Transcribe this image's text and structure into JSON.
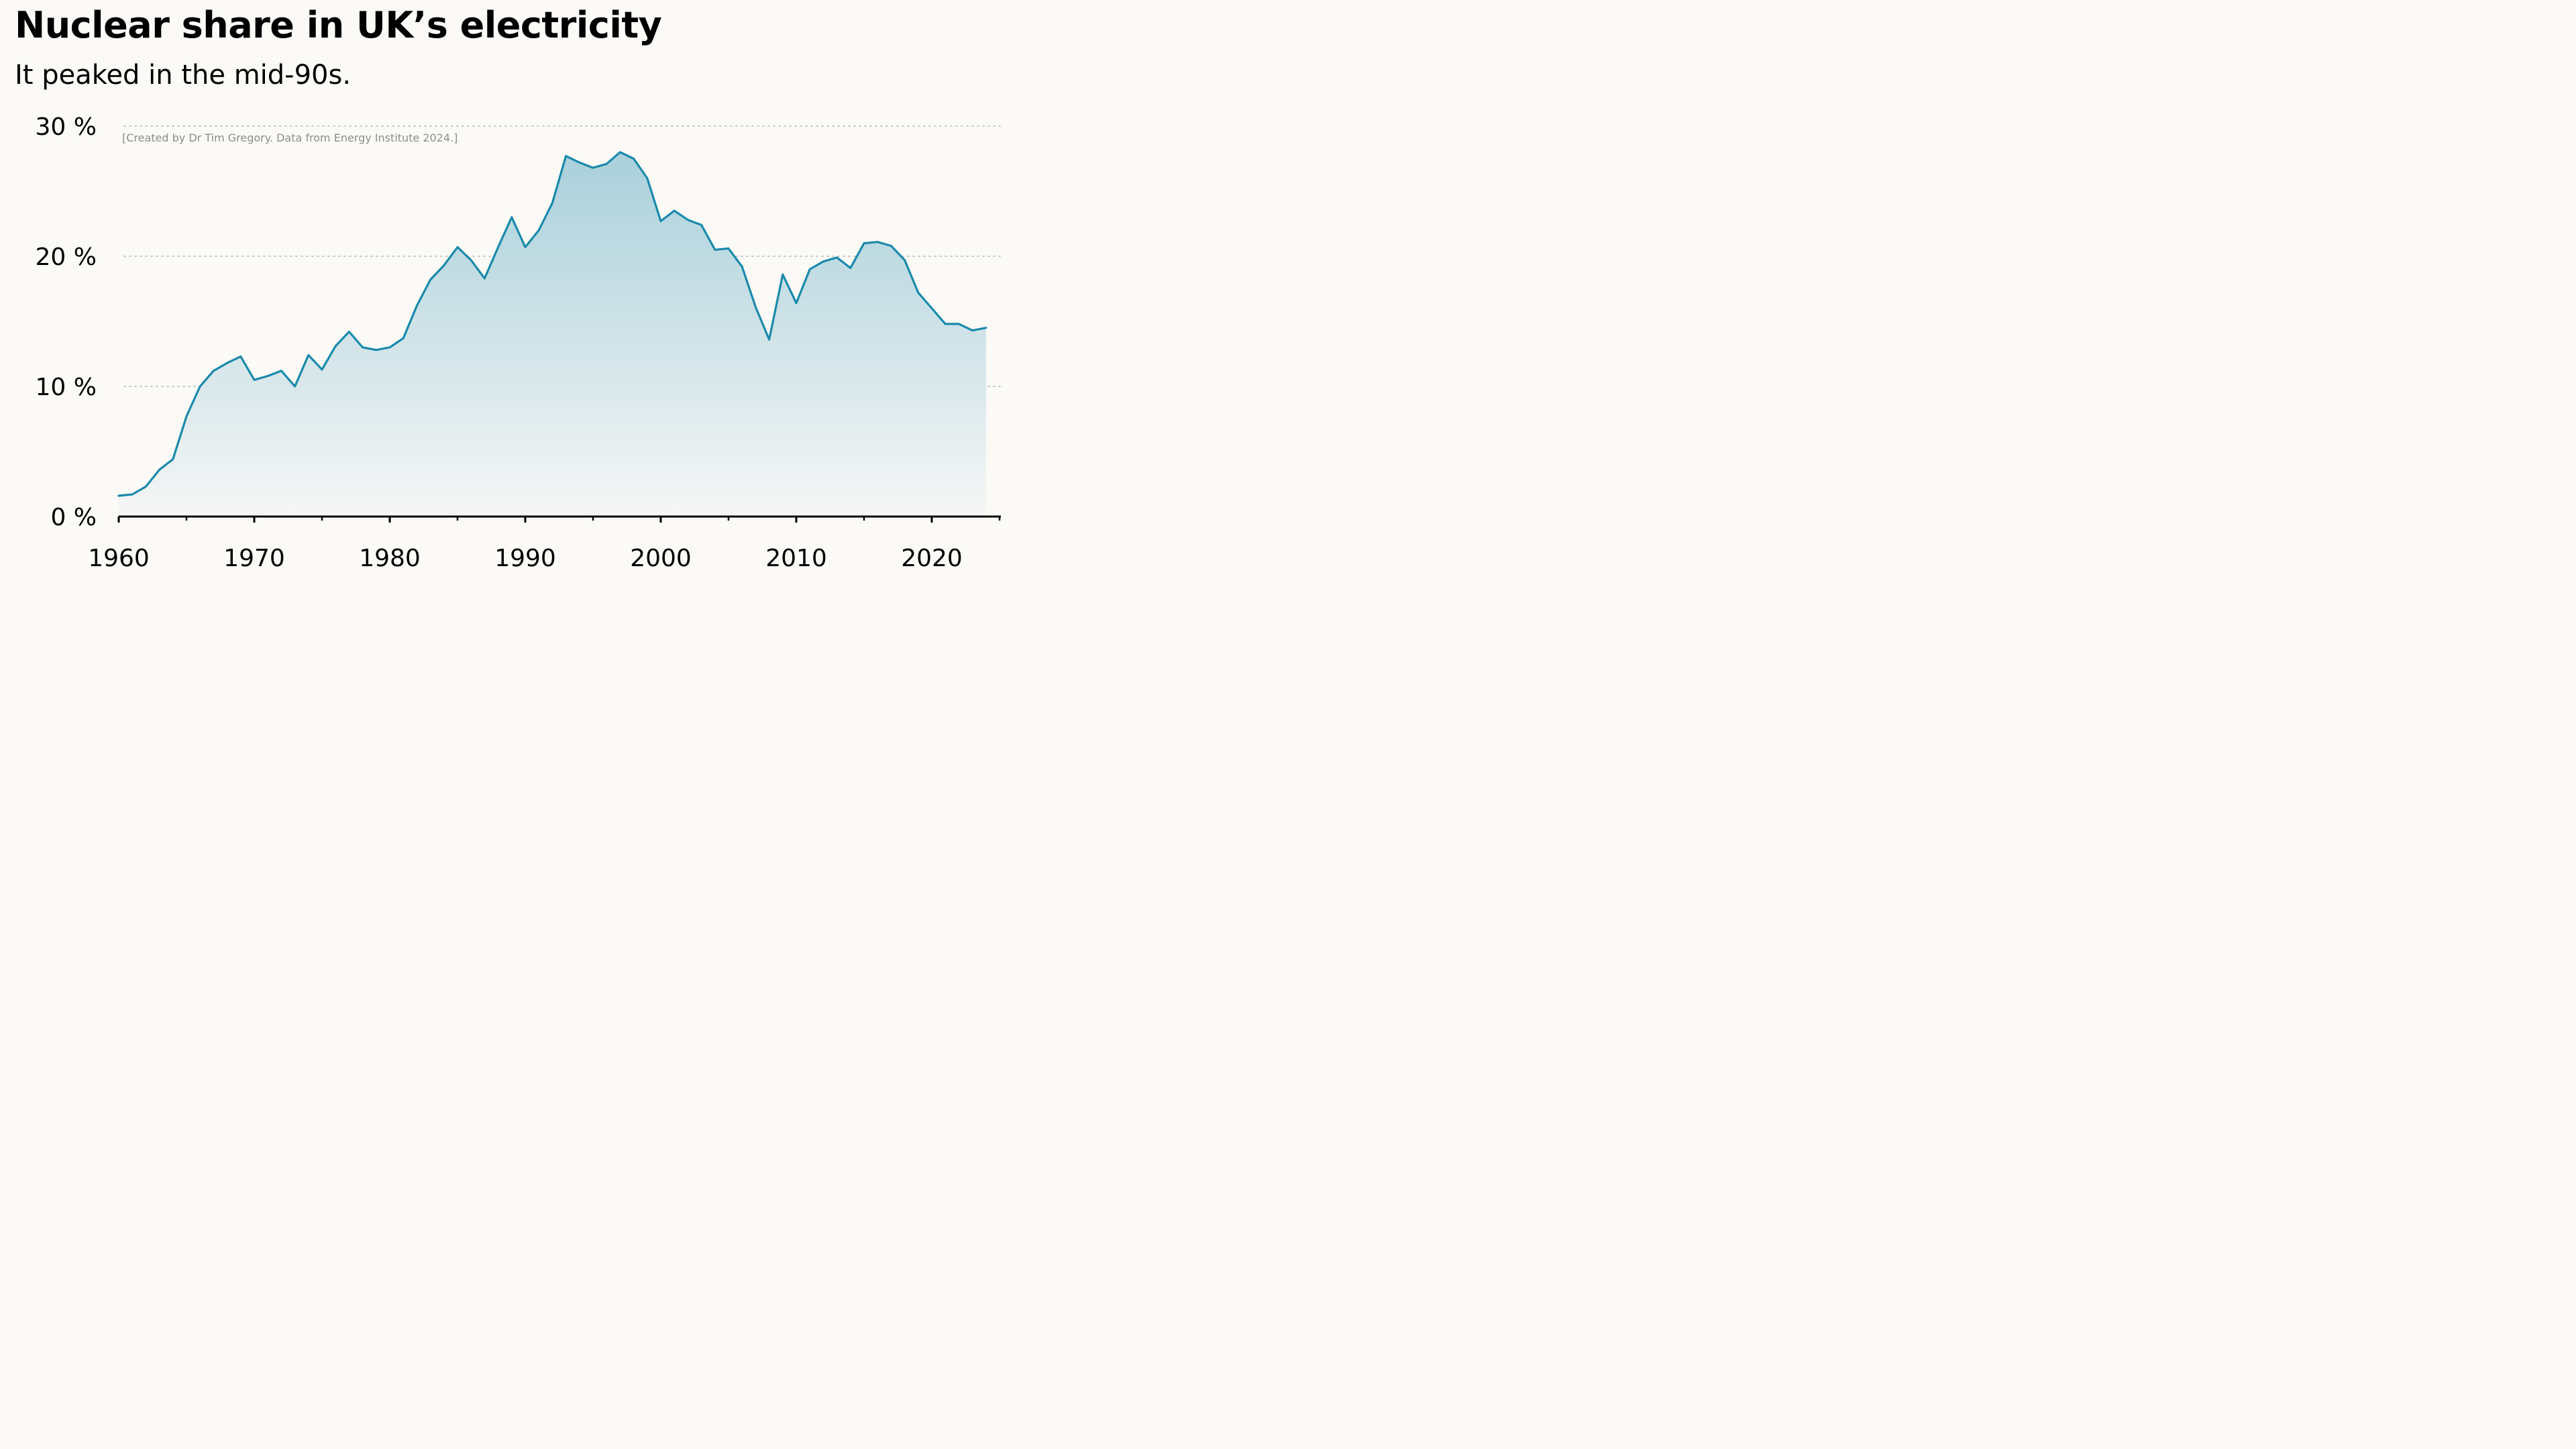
{
  "chart_data": {
    "type": "area",
    "title": "Nuclear share in UK’s electricity",
    "subtitle": "It peaked in the mid-90s.",
    "credit": "[Created by Dr Tim Gregory. Data from Energy Institute 2024.]",
    "xlabel": "",
    "ylabel": "",
    "xlim": [
      1960,
      2025
    ],
    "ylim": [
      0,
      30
    ],
    "yunit": "%",
    "grid": "horizontal dotted",
    "legend": "none",
    "yticks": [
      {
        "value": 0,
        "label": "0 %"
      },
      {
        "value": 10,
        "label": "10 %"
      },
      {
        "value": 20,
        "label": "20 %"
      },
      {
        "value": 30,
        "label": "30 %"
      }
    ],
    "xticks": [
      {
        "value": 1960,
        "label": "1960"
      },
      {
        "value": 1970,
        "label": "1970"
      },
      {
        "value": 1980,
        "label": "1980"
      },
      {
        "value": 1990,
        "label": "1990"
      },
      {
        "value": 2000,
        "label": "2000"
      },
      {
        "value": 2010,
        "label": "2010"
      },
      {
        "value": 2020,
        "label": "2020"
      }
    ],
    "minor_xticks": [
      1965,
      1975,
      1985,
      1995,
      2005,
      2015,
      2025
    ],
    "colors": {
      "line": "#1a8aab",
      "fill_top": "#a9d0db",
      "fill_bottom": "#f6f6f5",
      "grid": "#c8c8c8",
      "axis": "#000000",
      "background": "#fbfaf6"
    },
    "series": [
      {
        "x": [
          1960,
          1961,
          1962,
          1963,
          1964,
          1965,
          1966,
          1967,
          1968,
          1969,
          1970,
          1971,
          1972,
          1973,
          1974,
          1975,
          1976,
          1977,
          1978,
          1979,
          1980,
          1981,
          1982,
          1983,
          1984,
          1985,
          1986,
          1987,
          1988,
          1989,
          1990,
          1991,
          1992,
          1993,
          1994,
          1995,
          1996,
          1997,
          1998,
          1999,
          2000,
          2001,
          2002,
          2003,
          2004,
          2005,
          2006,
          2007,
          2008,
          2009,
          2010,
          2011,
          2012,
          2013,
          2014,
          2015,
          2016,
          2017,
          2018,
          2019,
          2020,
          2021,
          2022,
          2023,
          2024
        ],
        "values": [
          1.6,
          1.7,
          2.3,
          3.6,
          4.4,
          7.7,
          10.0,
          11.2,
          11.8,
          12.3,
          10.5,
          10.8,
          11.2,
          10.0,
          12.4,
          11.3,
          13.1,
          14.2,
          13.0,
          12.8,
          13.0,
          13.7,
          16.2,
          18.2,
          19.3,
          20.7,
          19.7,
          18.3,
          20.7,
          23.0,
          20.7,
          22.0,
          24.1,
          27.7,
          27.2,
          26.8,
          27.1,
          28.0,
          27.5,
          26.0,
          22.7,
          23.5,
          22.8,
          22.4,
          20.5,
          20.6,
          19.2,
          16.1,
          13.6,
          18.6,
          16.4,
          19.0,
          19.6,
          19.9,
          19.1,
          21.0,
          21.1,
          20.8,
          19.7,
          17.2,
          16.0,
          14.8,
          14.8,
          14.3,
          14.5
        ]
      }
    ]
  }
}
